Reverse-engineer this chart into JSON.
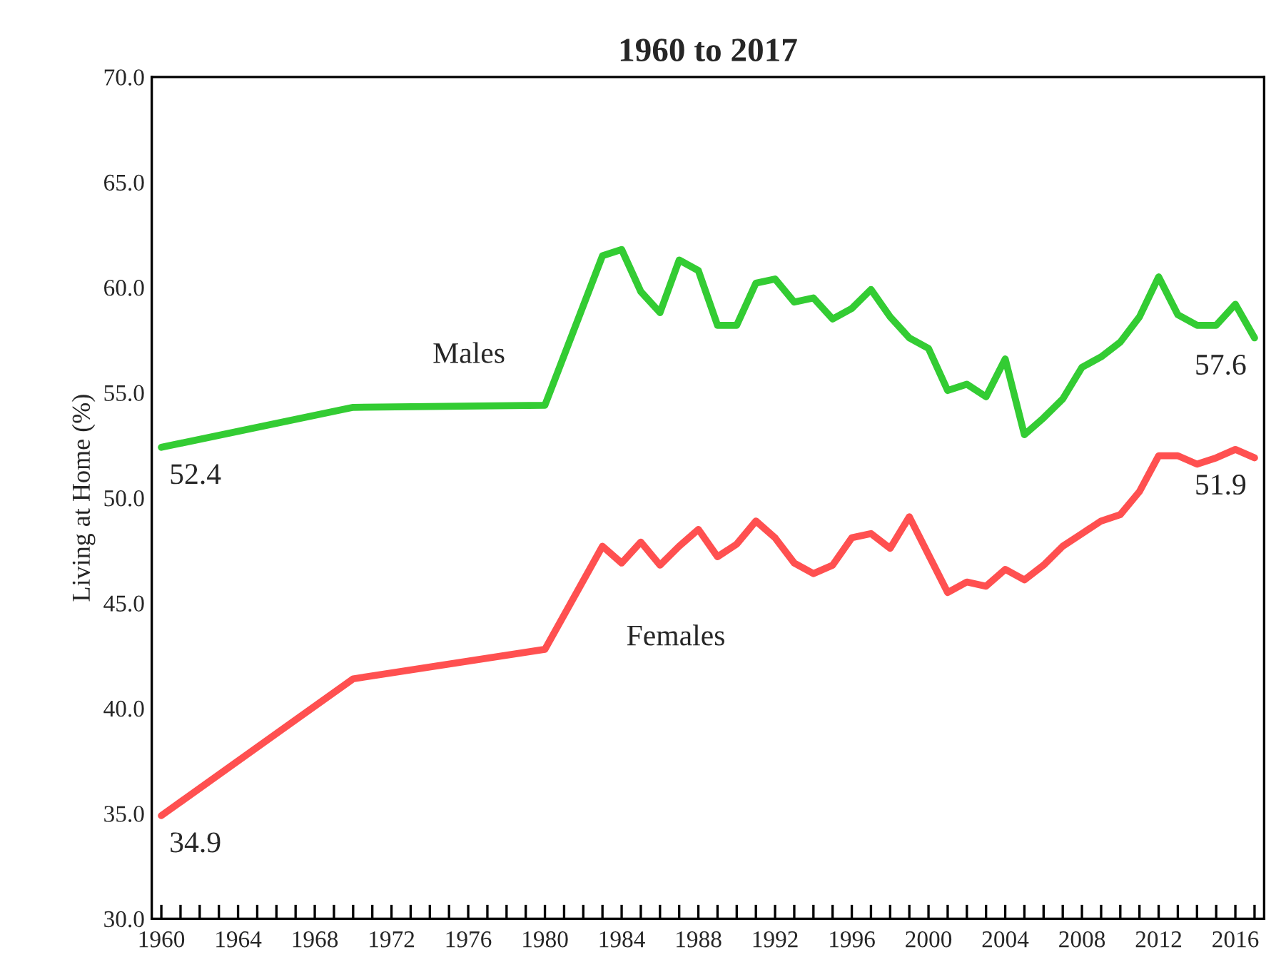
{
  "chart_data": {
    "type": "line",
    "title": "1960 to 2017",
    "ylabel": "Living at Home (%)",
    "x": [
      1960,
      1970,
      1980,
      1983,
      1984,
      1985,
      1986,
      1987,
      1988,
      1989,
      1990,
      1991,
      1992,
      1993,
      1994,
      1995,
      1996,
      1997,
      1998,
      1999,
      2000,
      2001,
      2002,
      2003,
      2004,
      2005,
      2006,
      2007,
      2008,
      2009,
      2010,
      2011,
      2012,
      2013,
      2014,
      2015,
      2016,
      2017
    ],
    "series": [
      {
        "name": "Males",
        "color": "#33cc33",
        "values": [
          52.4,
          54.3,
          54.4,
          61.5,
          61.8,
          59.8,
          58.8,
          61.3,
          60.8,
          58.2,
          58.2,
          60.2,
          60.4,
          59.3,
          59.5,
          58.5,
          59.0,
          59.9,
          58.6,
          57.6,
          57.1,
          55.1,
          55.4,
          54.8,
          56.6,
          53.0,
          53.8,
          54.7,
          56.2,
          56.7,
          57.4,
          58.6,
          60.5,
          58.7,
          58.2,
          58.2,
          59.2,
          57.6
        ],
        "value_labels": [
          "52.4",
          null,
          null,
          null,
          null,
          null,
          null,
          null,
          null,
          null,
          null,
          null,
          null,
          null,
          null,
          null,
          null,
          null,
          null,
          null,
          null,
          null,
          null,
          null,
          null,
          null,
          null,
          null,
          null,
          null,
          null,
          null,
          null,
          null,
          null,
          null,
          null,
          "57.6"
        ]
      },
      {
        "name": "Females",
        "color": "#ff5050",
        "values": [
          34.9,
          41.4,
          42.8,
          47.7,
          46.9,
          47.9,
          46.8,
          47.7,
          48.5,
          47.2,
          47.8,
          48.9,
          48.1,
          46.9,
          46.4,
          46.8,
          48.1,
          48.3,
          47.6,
          49.1,
          47.3,
          45.5,
          46.0,
          45.8,
          46.6,
          46.1,
          46.8,
          47.7,
          48.3,
          48.9,
          49.2,
          50.3,
          52.0,
          52.0,
          51.6,
          51.9,
          52.3,
          51.9
        ],
        "value_labels": [
          "34.9",
          null,
          null,
          null,
          null,
          null,
          null,
          null,
          null,
          null,
          null,
          null,
          null,
          null,
          null,
          null,
          null,
          null,
          null,
          null,
          null,
          null,
          null,
          null,
          null,
          null,
          null,
          null,
          null,
          null,
          null,
          null,
          null,
          null,
          null,
          null,
          null,
          "51.9"
        ]
      }
    ],
    "xlim": [
      1959.5,
      2017.5
    ],
    "xticks": [
      {
        "value": 1960,
        "label": "1960"
      },
      {
        "value": 1961,
        "label": null
      },
      {
        "value": 1962,
        "label": null
      },
      {
        "value": 1963,
        "label": null
      },
      {
        "value": 1964,
        "label": "1964"
      },
      {
        "value": 1965,
        "label": null
      },
      {
        "value": 1966,
        "label": null
      },
      {
        "value": 1967,
        "label": null
      },
      {
        "value": 1968,
        "label": "1968"
      },
      {
        "value": 1969,
        "label": null
      },
      {
        "value": 1970,
        "label": null
      },
      {
        "value": 1971,
        "label": null
      },
      {
        "value": 1972,
        "label": "1972"
      },
      {
        "value": 1973,
        "label": null
      },
      {
        "value": 1974,
        "label": null
      },
      {
        "value": 1975,
        "label": null
      },
      {
        "value": 1976,
        "label": "1976"
      },
      {
        "value": 1977,
        "label": null
      },
      {
        "value": 1978,
        "label": null
      },
      {
        "value": 1979,
        "label": null
      },
      {
        "value": 1980,
        "label": "1980"
      },
      {
        "value": 1981,
        "label": null
      },
      {
        "value": 1982,
        "label": null
      },
      {
        "value": 1983,
        "label": null
      },
      {
        "value": 1984,
        "label": "1984"
      },
      {
        "value": 1985,
        "label": null
      },
      {
        "value": 1986,
        "label": null
      },
      {
        "value": 1987,
        "label": null
      },
      {
        "value": 1988,
        "label": "1988"
      },
      {
        "value": 1989,
        "label": null
      },
      {
        "value": 1990,
        "label": null
      },
      {
        "value": 1991,
        "label": null
      },
      {
        "value": 1992,
        "label": "1992"
      },
      {
        "value": 1993,
        "label": null
      },
      {
        "value": 1994,
        "label": null
      },
      {
        "value": 1995,
        "label": null
      },
      {
        "value": 1996,
        "label": "1996"
      },
      {
        "value": 1997,
        "label": null
      },
      {
        "value": 1998,
        "label": null
      },
      {
        "value": 1999,
        "label": null
      },
      {
        "value": 2000,
        "label": "2000"
      },
      {
        "value": 2001,
        "label": null
      },
      {
        "value": 2002,
        "label": null
      },
      {
        "value": 2003,
        "label": null
      },
      {
        "value": 2004,
        "label": "2004"
      },
      {
        "value": 2005,
        "label": null
      },
      {
        "value": 2006,
        "label": null
      },
      {
        "value": 2007,
        "label": null
      },
      {
        "value": 2008,
        "label": "2008"
      },
      {
        "value": 2009,
        "label": null
      },
      {
        "value": 2010,
        "label": null
      },
      {
        "value": 2011,
        "label": null
      },
      {
        "value": 2012,
        "label": "2012"
      },
      {
        "value": 2013,
        "label": null
      },
      {
        "value": 2014,
        "label": null
      },
      {
        "value": 2015,
        "label": null
      },
      {
        "value": 2016,
        "label": "2016"
      },
      {
        "value": 2017,
        "label": null
      }
    ],
    "ylim": [
      30,
      70
    ],
    "yticks": [
      {
        "value": 30,
        "label": "30.0"
      },
      {
        "value": 35,
        "label": "35.0"
      },
      {
        "value": 40,
        "label": "40.0"
      },
      {
        "value": 45,
        "label": "45.0"
      },
      {
        "value": 50,
        "label": "50.0"
      },
      {
        "value": 55,
        "label": "55.0"
      },
      {
        "value": 60,
        "label": "60.0"
      },
      {
        "value": 65,
        "label": "65.0"
      },
      {
        "value": 70,
        "label": "70.0"
      }
    ],
    "grid": false,
    "legend": false,
    "marker": "none",
    "line_style": "solid"
  }
}
